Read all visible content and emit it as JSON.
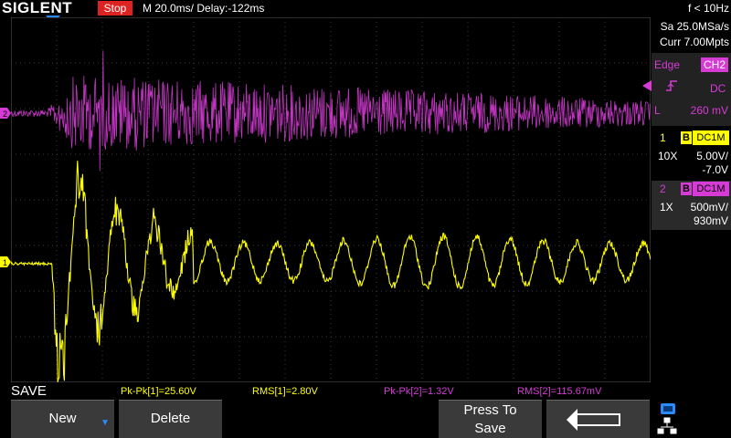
{
  "header": {
    "brand": "SIGLENT",
    "run_status": "Stop",
    "timebase": "M 20.0ms/ Delay:-122ms",
    "frequency": "f < 10Hz"
  },
  "acquisition": {
    "sample_rate": "Sa 25.0MSa/s",
    "memory_depth": "Curr 7.00Mpts"
  },
  "trigger": {
    "mode": "Edge",
    "source": "CH2",
    "slope_icon": "rising-edge-icon",
    "coupling": "DC",
    "level_label": "L",
    "level": "260 mV"
  },
  "channels": [
    {
      "number": "1",
      "bw": "B",
      "coupling": "DC1M",
      "probe": "10X",
      "scale": "5.00V/",
      "offset": "-7.0V",
      "color": "#ffff00"
    },
    {
      "number": "2",
      "bw": "B",
      "coupling": "DC1M",
      "probe": "1X",
      "scale": "500mV/",
      "offset": "930mV",
      "color": "#d63bd6"
    }
  ],
  "measurements": [
    {
      "text": "Pk-Pk[1]=25.60V"
    },
    {
      "text": "RMS[1]=2.80V"
    },
    {
      "text": "Pk-Pk[2]=1.32V"
    },
    {
      "text": "RMS[2]=115.67mV"
    }
  ],
  "menu": {
    "title": "SAVE",
    "softkeys": [
      {
        "label": "New"
      },
      {
        "label": "Delete"
      },
      {
        "label_line1": "Press To",
        "label_line2": "Save"
      },
      {
        "icon": "return-arrow-icon"
      }
    ]
  },
  "colors": {
    "ch1": "#ffff00",
    "ch2": "#d63bd6",
    "stop": "#dd2222",
    "grid": "#5a5a5a"
  }
}
